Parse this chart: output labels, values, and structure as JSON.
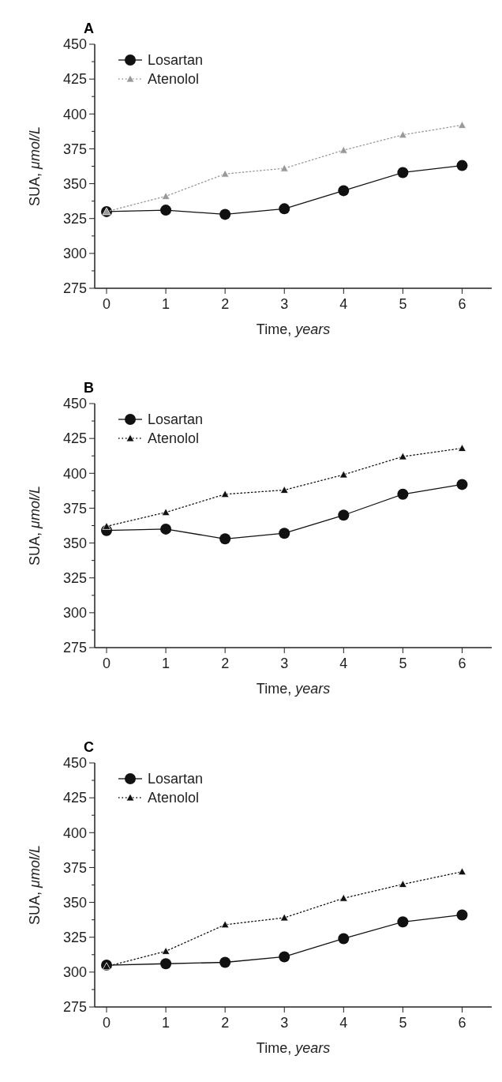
{
  "chart_data": [
    {
      "type": "line",
      "title": "A",
      "xlabel": "Time, years",
      "ylabel": "SUA, μmol/L",
      "x": [
        0,
        1,
        2,
        3,
        4,
        5,
        6
      ],
      "xlim": [
        -0.2,
        6.5
      ],
      "xticks": [
        0,
        1,
        2,
        3,
        4,
        5,
        6
      ],
      "ylim": [
        275,
        450
      ],
      "yticks": [
        275,
        {
          "value": 287.5,
          "label": null
        },
        300,
        {
          "value": 312.5,
          "label": null
        },
        325,
        {
          "value": 337.5,
          "label": null
        },
        350,
        {
          "value": 362.5,
          "label": null
        },
        375,
        {
          "value": 387.5,
          "label": null
        },
        400,
        {
          "value": 412.5,
          "label": null
        },
        425,
        {
          "value": 437.5,
          "label": null
        },
        450
      ],
      "legend": "top left",
      "grid": false,
      "series": [
        {
          "name": "Losartan",
          "color": "#111111",
          "marker": "circle",
          "line_style": "solid",
          "values": [
            330,
            331,
            328,
            332,
            345,
            358,
            363
          ]
        },
        {
          "name": "Atenolol",
          "color": "#999999",
          "marker": "triangle",
          "line_style": "dotted",
          "values": [
            330,
            341,
            357,
            361,
            374,
            385,
            392
          ]
        }
      ]
    },
    {
      "type": "line",
      "title": "B",
      "xlabel": "Time, years",
      "ylabel": "SUA, μmol/L",
      "x": [
        0,
        1,
        2,
        3,
        4,
        5,
        6
      ],
      "xlim": [
        -0.2,
        6.5
      ],
      "xticks": [
        0,
        1,
        2,
        3,
        4,
        5,
        6
      ],
      "ylim": [
        275,
        450
      ],
      "yticks": [
        275,
        {
          "value": 287.5,
          "label": null
        },
        300,
        {
          "value": 312.5,
          "label": null
        },
        325,
        {
          "value": 337.5,
          "label": null
        },
        350,
        {
          "value": 362.5,
          "label": null
        },
        375,
        {
          "value": 387.5,
          "label": null
        },
        400,
        {
          "value": 412.5,
          "label": null
        },
        425,
        {
          "value": 437.5,
          "label": null
        },
        450
      ],
      "legend": "top left",
      "grid": false,
      "series": [
        {
          "name": "Losartan",
          "color": "#111111",
          "marker": "circle",
          "line_style": "solid",
          "values": [
            359,
            360,
            353,
            357,
            370,
            385,
            392
          ]
        },
        {
          "name": "Atenolol",
          "color": "#111111",
          "marker": "triangle",
          "line_style": "dotted",
          "values": [
            362,
            372,
            385,
            388,
            399,
            412,
            418
          ]
        }
      ]
    },
    {
      "type": "line",
      "title": "C",
      "xlabel": "Time, years",
      "ylabel": "SUA, μmol/L",
      "x": [
        0,
        1,
        2,
        3,
        4,
        5,
        6
      ],
      "xlim": [
        -0.2,
        6.5
      ],
      "xticks": [
        0,
        1,
        2,
        3,
        4,
        5,
        6
      ],
      "ylim": [
        275,
        450
      ],
      "yticks": [
        275,
        {
          "value": 287.5,
          "label": null
        },
        300,
        {
          "value": 312.5,
          "label": null
        },
        325,
        {
          "value": 337.5,
          "label": null
        },
        350,
        {
          "value": 362.5,
          "label": null
        },
        375,
        {
          "value": 387.5,
          "label": null
        },
        400,
        {
          "value": 412.5,
          "label": null
        },
        425,
        {
          "value": 437.5,
          "label": null
        },
        450
      ],
      "legend": "top left",
      "grid": false,
      "series": [
        {
          "name": "Losartan",
          "color": "#111111",
          "marker": "circle",
          "line_style": "solid",
          "values": [
            305,
            306,
            307,
            311,
            324,
            336,
            341
          ]
        },
        {
          "name": "Atenolol",
          "color": "#111111",
          "marker": "triangle",
          "line_style": "dotted",
          "values": [
            304,
            315,
            334,
            339,
            353,
            363,
            372
          ]
        }
      ]
    }
  ]
}
